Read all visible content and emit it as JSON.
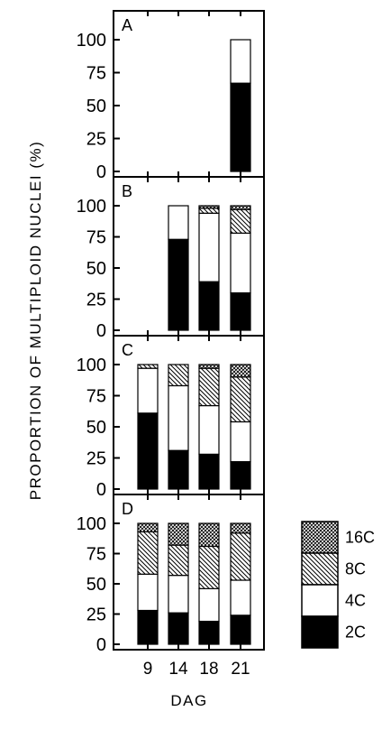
{
  "chart_data": {
    "type": "bar",
    "stacked": true,
    "xlabel": "DAG",
    "ylabel": "PROPORTION OF MULTIPLOID NUCLEI (%)",
    "categories": [
      "9",
      "14",
      "18",
      "21"
    ],
    "ylim": [
      0,
      100
    ],
    "yticks": [
      "0",
      "25",
      "50",
      "75",
      "100"
    ],
    "legend": {
      "placement": "right of panel D",
      "entries": [
        {
          "name": "16C",
          "fill": "crosshatch"
        },
        {
          "name": "8C",
          "fill": "diagonal-hatch"
        },
        {
          "name": "4C",
          "fill": "white"
        },
        {
          "name": "2C",
          "fill": "black"
        }
      ]
    },
    "panels": [
      {
        "label": "A",
        "series": [
          {
            "name": "2C",
            "values": [
              null,
              null,
              null,
              67
            ]
          },
          {
            "name": "4C",
            "values": [
              null,
              null,
              null,
              33
            ]
          },
          {
            "name": "8C",
            "values": [
              null,
              null,
              null,
              0
            ]
          },
          {
            "name": "16C",
            "values": [
              null,
              null,
              null,
              0
            ]
          }
        ]
      },
      {
        "label": "B",
        "series": [
          {
            "name": "2C",
            "values": [
              null,
              73,
              39,
              30
            ]
          },
          {
            "name": "4C",
            "values": [
              null,
              27,
              55,
              48
            ]
          },
          {
            "name": "8C",
            "values": [
              null,
              0,
              4,
              19
            ]
          },
          {
            "name": "16C",
            "values": [
              null,
              0,
              2,
              3
            ]
          }
        ]
      },
      {
        "label": "C",
        "series": [
          {
            "name": "2C",
            "values": [
              61,
              31,
              28,
              22
            ]
          },
          {
            "name": "4C",
            "values": [
              36,
              52,
              39,
              32
            ]
          },
          {
            "name": "8C",
            "values": [
              3,
              17,
              30,
              36
            ]
          },
          {
            "name": "16C",
            "values": [
              0,
              0,
              3,
              10
            ]
          }
        ]
      },
      {
        "label": "D",
        "series": [
          {
            "name": "2C",
            "values": [
              28,
              26,
              19,
              24
            ]
          },
          {
            "name": "4C",
            "values": [
              30,
              31,
              27,
              29
            ]
          },
          {
            "name": "8C",
            "values": [
              35,
              25,
              35,
              39
            ]
          },
          {
            "name": "16C",
            "values": [
              7,
              18,
              19,
              8
            ]
          }
        ]
      }
    ]
  }
}
